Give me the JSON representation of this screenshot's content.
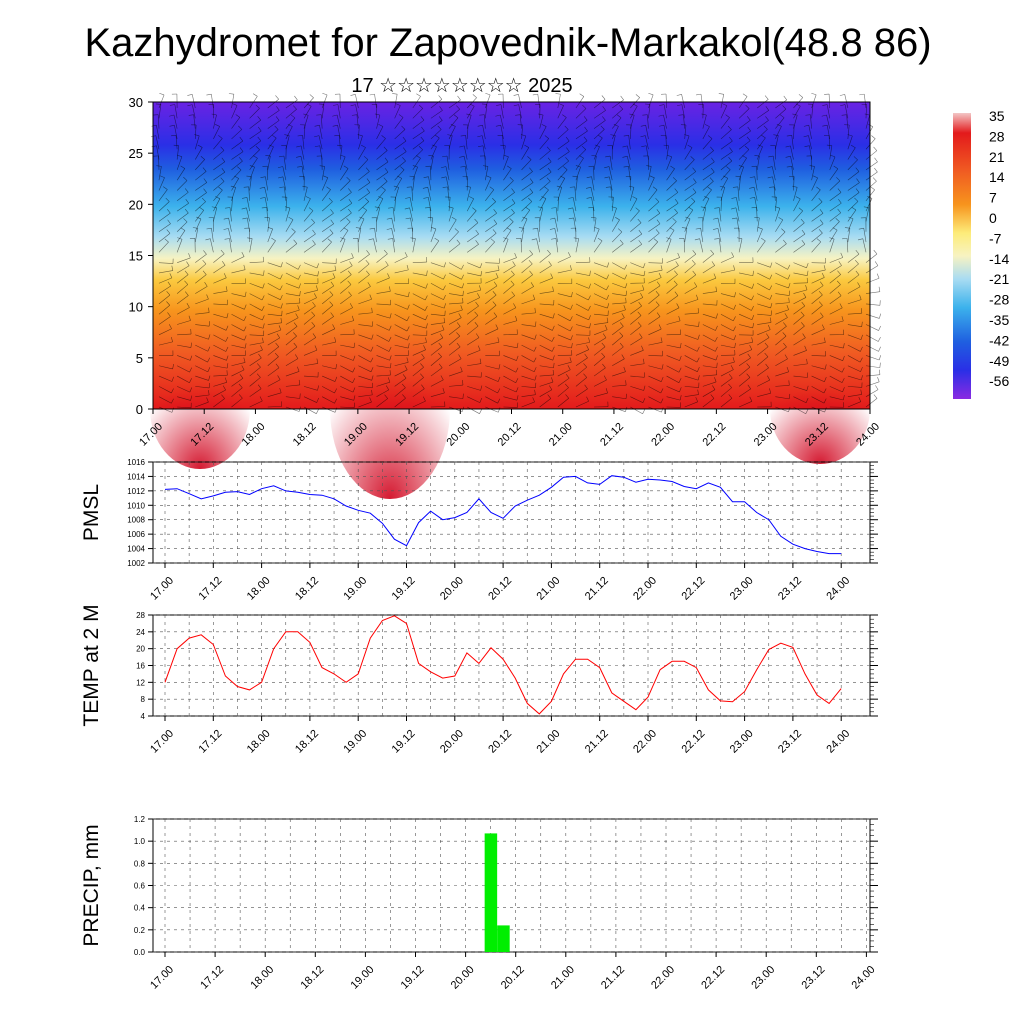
{
  "title": "Kazhydromet for Zapovednik-Markakol(48.8 86)",
  "subtitle": "17 ☆☆☆☆☆☆☆☆ 2025",
  "time_labels": [
    "17.00",
    "17.12",
    "18.00",
    "18.12",
    "19.00",
    "19.12",
    "20.00",
    "20.12",
    "21.00",
    "21.12",
    "22.00",
    "22.12",
    "23.00",
    "23.12",
    "24.00"
  ],
  "colorbar": {
    "labels": [
      "35",
      "28",
      "21",
      "14",
      "7",
      "0",
      "-7",
      "-14",
      "-21",
      "-28",
      "-35",
      "-42",
      "-49",
      "-56"
    ],
    "colors": [
      "#f3c6c6",
      "#e31a1c",
      "#e8432a",
      "#f5681f",
      "#f7941d",
      "#fbbf3a",
      "#fdec7a",
      "#f7f3c2",
      "#a9dcf2",
      "#3cb2ec",
      "#1f6fe0",
      "#2a2fe6",
      "#3612e0",
      "#8a2be2"
    ]
  },
  "chart_data": [
    {
      "type": "heatmap",
      "title": "",
      "xlabel": "",
      "ylabel": "",
      "ylim": [
        0,
        30
      ],
      "y_ticks": [
        0,
        5,
        10,
        15,
        20,
        25,
        30
      ],
      "x_categories": [
        "17.00",
        "17.12",
        "18.00",
        "18.12",
        "19.00",
        "19.12",
        "20.00",
        "20.12",
        "21.00",
        "21.12",
        "22.00",
        "22.12",
        "23.00",
        "23.12",
        "24.00"
      ],
      "color_scale": "temperature (approx -60 to 35)",
      "notes": "Vertical temperature cross-section with wind barbs; warm near surface (~20-30), cold aloft (~-55 at 25-30)."
    },
    {
      "type": "line",
      "ylabel": "PMSL",
      "ylim": [
        1002,
        1016
      ],
      "y_ticks": [
        1002,
        1004,
        1006,
        1008,
        1010,
        1012,
        1014,
        1016
      ],
      "series": [
        {
          "color": "#0000ff",
          "values": [
            1012.2,
            1012.3,
            1011.6,
            1010.9,
            1011.3,
            1011.8,
            1011.9,
            1011.5,
            1012.3,
            1012.7,
            1012.0,
            1011.8,
            1011.5,
            1011.4,
            1010.9,
            1009.9,
            1009.3,
            1008.9,
            1007.5,
            1005.3,
            1004.4,
            1007.6,
            1009.2,
            1008.0,
            1008.3,
            1009.0,
            1010.9,
            1009.0,
            1008.2,
            1009.9,
            1010.7,
            1011.4,
            1012.5,
            1013.9,
            1014.0,
            1013.1,
            1012.9,
            1014.1,
            1013.9,
            1013.2,
            1013.6,
            1013.5,
            1013.3,
            1012.6,
            1012.3,
            1013.1,
            1012.5,
            1010.5,
            1010.5,
            1009.0,
            1008.0,
            1005.7,
            1004.6,
            1004.0,
            1003.6,
            1003.3,
            1003.3
          ]
        }
      ]
    },
    {
      "type": "line",
      "ylabel": "TEMP at 2 M",
      "ylim": [
        4,
        28
      ],
      "y_ticks": [
        4,
        8,
        12,
        16,
        20,
        24,
        28
      ],
      "series": [
        {
          "color": "#ff0000",
          "values": [
            12,
            20,
            22.5,
            23.3,
            21,
            13.5,
            11,
            10.2,
            12,
            20,
            24,
            24,
            21.5,
            15.5,
            14,
            12,
            14,
            22.5,
            26.7,
            27.8,
            26,
            16.5,
            14.5,
            13,
            13.5,
            19,
            16.5,
            20.2,
            17.5,
            13,
            7,
            4.5,
            7.5,
            14,
            17.5,
            17.5,
            15.5,
            9.5,
            7.5,
            5.5,
            8.5,
            15,
            17,
            17,
            15.5,
            10.2,
            7.6,
            7.4,
            9.8,
            15,
            19.8,
            21.3,
            20.3,
            14,
            9,
            7,
            10.5
          ]
        }
      ]
    },
    {
      "type": "bar",
      "ylabel": "PRECIP, mm",
      "ylim": [
        0,
        1.2
      ],
      "y_ticks": [
        0.0,
        0.2,
        0.4,
        0.6,
        0.8,
        1.0,
        1.2
      ],
      "y_tick_labels": [
        "0.0",
        "0.2",
        "0.4",
        "0.6",
        "0.8",
        "1.0",
        "1.2"
      ],
      "bars": [
        {
          "x": "20.06",
          "value": 1.07,
          "color": "#00ee00"
        },
        {
          "x": "20.09",
          "value": 0.24,
          "color": "#00ee00"
        }
      ]
    }
  ]
}
